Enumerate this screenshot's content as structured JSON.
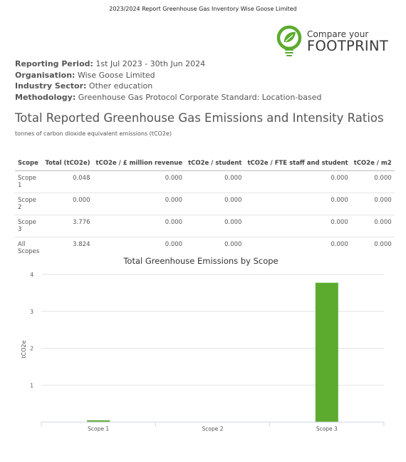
{
  "header": {
    "title": "2023/2024 Report Greenhouse Gas Inventory Wise Goose Limited"
  },
  "logo": {
    "line1": "Compare your",
    "line2": "FOOTPRINT",
    "brand_green": "#5cab2f"
  },
  "meta": {
    "reporting_period_label": "Reporting Period:",
    "reporting_period_value": "1st Jul 2023 - 30th Jun 2024",
    "organisation_label": "Organisation:",
    "organisation_value": "Wise Goose Limited",
    "industry_label": "Industry Sector:",
    "industry_value": "Other education",
    "methodology_label": "Methodology:",
    "methodology_value": "Greenhouse Gas Protocol Corporate Standard: Location-based"
  },
  "section": {
    "title": "Total Reported Greenhouse Gas Emissions and Intensity Ratios",
    "subtitle": "tonnes of carbon dioxide equivalent emissions (tCO2e)"
  },
  "table": {
    "headers": [
      "Scope",
      "Total (tCO2e)",
      "tCO2e / £ million revenue",
      "tCO2e / student",
      "tCO2e / FTE staff and student",
      "tCO2e / m2"
    ],
    "rows": [
      [
        "Scope 1",
        "0.048",
        "0.000",
        "0.000",
        "0.000",
        "0.000"
      ],
      [
        "Scope 2",
        "0.000",
        "0.000",
        "0.000",
        "0.000",
        "0.000"
      ],
      [
        "Scope 3",
        "3.776",
        "0.000",
        "0.000",
        "0.000",
        "0.000"
      ],
      [
        "All Scopes",
        "3.824",
        "0.000",
        "0.000",
        "0.000",
        "0.000"
      ]
    ]
  },
  "chart_data": {
    "type": "bar",
    "title": "Total Greenhouse Emissions by Scope",
    "xlabel": "",
    "ylabel": "tCO2e",
    "categories": [
      "Scope 1",
      "Scope 2",
      "Scope 3"
    ],
    "values": [
      0.048,
      0.0,
      3.776
    ],
    "ylim": [
      0,
      4
    ],
    "yticks": [
      1,
      2,
      3,
      4
    ],
    "grid": true,
    "bar_color": "#5cab2f"
  }
}
